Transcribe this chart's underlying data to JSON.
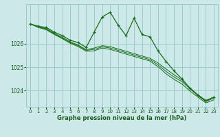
{
  "background_color": "#cce8e8",
  "grid_color": "#99cccc",
  "line_color": "#1a6e1a",
  "text_color": "#1a5c1a",
  "xlabel": "Graphe pression niveau de la mer (hPa)",
  "ylim": [
    1023.3,
    1027.7
  ],
  "xlim": [
    -0.5,
    23.5
  ],
  "yticks": [
    1024,
    1025,
    1026
  ],
  "xticks": [
    0,
    1,
    2,
    3,
    4,
    5,
    6,
    7,
    8,
    9,
    10,
    11,
    12,
    13,
    14,
    15,
    16,
    17,
    18,
    19,
    20,
    21,
    22,
    23
  ],
  "series_main": [
    1026.85,
    1026.75,
    1026.7,
    1026.5,
    1026.35,
    1026.15,
    1026.05,
    1025.85,
    1026.5,
    1027.15,
    1027.35,
    1026.8,
    1026.35,
    1027.1,
    1026.4,
    1026.3,
    1025.7,
    1025.25,
    1024.85,
    1024.5,
    1024.1,
    1023.8,
    1023.55,
    1023.72
  ],
  "series_trend1": [
    1026.85,
    1026.73,
    1026.65,
    1026.45,
    1026.28,
    1026.08,
    1025.95,
    1025.75,
    1025.82,
    1025.92,
    1025.88,
    1025.78,
    1025.68,
    1025.58,
    1025.48,
    1025.38,
    1025.18,
    1024.92,
    1024.68,
    1024.45,
    1024.12,
    1023.82,
    1023.58,
    1023.72
  ],
  "series_trend2": [
    1026.85,
    1026.72,
    1026.63,
    1026.42,
    1026.25,
    1026.05,
    1025.92,
    1025.72,
    1025.76,
    1025.87,
    1025.82,
    1025.72,
    1025.62,
    1025.52,
    1025.42,
    1025.32,
    1025.1,
    1024.82,
    1024.58,
    1024.38,
    1024.08,
    1023.78,
    1023.53,
    1023.67
  ],
  "series_trend3": [
    1026.85,
    1026.7,
    1026.6,
    1026.4,
    1026.22,
    1026.02,
    1025.88,
    1025.68,
    1025.7,
    1025.82,
    1025.76,
    1025.66,
    1025.56,
    1025.46,
    1025.36,
    1025.26,
    1025.02,
    1024.72,
    1024.48,
    1024.28,
    1023.98,
    1023.72,
    1023.47,
    1023.6
  ]
}
